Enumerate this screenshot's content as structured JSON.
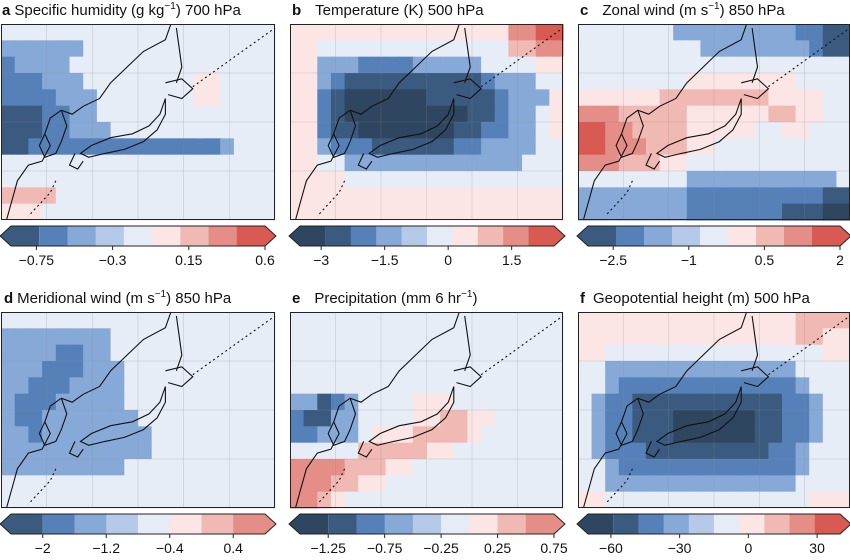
{
  "chart_data": [
    {
      "type": "heatmap",
      "letter": "a",
      "title_pre": "Specific humidity (g kg",
      "title_sup": "−1",
      "title_post": ") 700 hPa",
      "colorbar_ticks": [
        "−0.75",
        "−0.3",
        "0.15",
        "0.6"
      ],
      "colorbar_range": [
        -0.9,
        0.6
      ],
      "colorbar_levels": [
        "#3b5a80",
        "#5680b8",
        "#87a9d8",
        "#b5c9e8",
        "#e5ecf6",
        "#fbe6e5",
        "#f1b9b4",
        "#e58d87",
        "#d85a53"
      ],
      "grid": [
        "eeeeeeeeeeeeeeeeeeee",
        "ddddddeeeeeeeeeeeeee",
        "cddddeeeeeeeeeeeeeee",
        "cccdddeeeeeeeeffeeee",
        "ccccdddeeeeeeeffeeee",
        "bbbccddeeeeeeeeeeeee",
        "bbbccdddeeeeeeeeeeee",
        "bbccccccccccccccdeee",
        "eeeeeeeeeeeeeeeeeeee",
        "eeeeeeeeeeeeeeeeeeee",
        "ggggeeeeeeeeeeeeeeee",
        "fffeeeeeeeeeeeeeeeee"
      ]
    },
    {
      "type": "heatmap",
      "letter": "b",
      "title_pre": "Temperature (K) 500 hPa",
      "title_sup": "",
      "title_post": "",
      "colorbar_ticks": [
        "−3",
        "−1.5",
        "0",
        "1.5"
      ],
      "colorbar_range": [
        -3.5,
        2.5
      ],
      "colorbar_levels": [
        "#2f4660",
        "#3b5a80",
        "#5680b8",
        "#87a9d8",
        "#b5c9e8",
        "#e5ecf6",
        "#fbe6e5",
        "#f1b9b4",
        "#e58d87",
        "#d85a53"
      ],
      "grid": [
        "ffffffffffffffffhhii",
        "ffeeeeeeeeeeeeeegghh",
        "ffdddccccdddddeeeeff",
        "ffdcbbbbbbbbbbcdddee",
        "ffcbaaaaaabbbbbcdddf",
        "ffcbaaaaaaaaabbcddef",
        "ffcbbaaaaaaabbccddef",
        "ffdcccbbbbbbccddddee",
        "ffeedddddddddddddeee",
        "ffffeeeeeeeeeeeeeeee",
        "ffffffffffffffffffff",
        "ffffffffffffffffffff"
      ]
    },
    {
      "type": "heatmap",
      "letter": "c",
      "title_pre": "Zonal wind (m s",
      "title_sup": "−1",
      "title_post": ") 850 hPa",
      "colorbar_ticks": [
        "−2.5",
        "−1",
        "0.5",
        "2"
      ],
      "colorbar_range": [
        -3,
        2
      ],
      "colorbar_levels": [
        "#3b5a80",
        "#5680b8",
        "#87a9d8",
        "#b5c9e8",
        "#e5ecf6",
        "#fbe6e5",
        "#f1b9b4",
        "#e58d87",
        "#d85a53"
      ],
      "grid": [
        "eeeeeeedddddddddccbb",
        "eeeeeeeeeddddddddcbb",
        "eeeeeeeeeeeeeeeeeeee",
        "eeeeeeeeffffffffeeee",
        "ffffffggggggggffffee",
        "hhhgggggffffffggffee",
        "iihhggggfffffeeffeee",
        "iihhhgggffeeeeeeeeee",
        "hhhgggffeeeeeeeeeeee",
        "eeeeeeeeddddddddddde",
        "ddddddddccccccccccbb",
        "ddddddddcccccccbbbaa"
      ]
    },
    {
      "type": "heatmap",
      "letter": "d",
      "title_pre": "Meridional wind (m s",
      "title_sup": "−1",
      "title_post": ") 850 hPa",
      "colorbar_ticks": [
        "−2",
        "−1.2",
        "−0.4",
        "0.4"
      ],
      "colorbar_range": [
        -2.4,
        0.8
      ],
      "colorbar_levels": [
        "#3b5a80",
        "#5680b8",
        "#87a9d8",
        "#b5c9e8",
        "#e5ecf6",
        "#fbe6e5",
        "#f1b9b4",
        "#e58d87"
      ],
      "grid": [
        "eeeeeeeeeeeeeeeeeeee",
        "ddddddddeeeeeeeeeeee",
        "ddddccddeeeeeeeeeeee",
        "dddcccdddeeeeeeeeeee",
        "ddcccddddeeeeeeeeeee",
        "dcccdddddeeeeeeeeeee",
        "dccdddddddeeeeeeeeee",
        "ddcddddddddeeeeeeeee",
        "dddddddddddeeeeeeeee",
        "dddddddddeeeeeeeeeee",
        "eeeeeeeeeeeeeeeeeeee",
        "eeeeeeeeeeeeeeeeeeee"
      ]
    },
    {
      "type": "heatmap",
      "letter": "e",
      "title_pre": "Precipitation (mm 6 hr",
      "title_sup": "−1",
      "title_post": ")",
      "colorbar_ticks": [
        "−1.25",
        "−0.75",
        "−0.25",
        "0.25",
        "0.75"
      ],
      "colorbar_range": [
        -1.5,
        0.75
      ],
      "colorbar_levels": [
        "#2f4660",
        "#3b5a80",
        "#5680b8",
        "#87a9d8",
        "#b5c9e8",
        "#e5ecf6",
        "#fbe6e5",
        "#f1b9b4",
        "#e58d87"
      ],
      "grid": [
        "eeeeeeeeeeeeeeeeeeee",
        "eeeeeeeeeeeeeeeeeeee",
        "eeeeeeeeeeeeeeeeeeee",
        "eeeeeeeeeeeeeeeeeeee",
        "eeeeeeeeeeeeeeeeeeee",
        "ddbcdeeeefffeeeeeeee",
        "cbbddeeeeffggffeeeee",
        "ccdddefffggggfeeeeee",
        "eeeeegggggffeeeeeeee",
        "hhhhgggffeeeeeeeeeee",
        "hhhggffeeeeeeeeeeeee",
        "hhgfeeeeeeeeeeeeeeee"
      ]
    },
    {
      "type": "heatmap",
      "letter": "f",
      "title_pre": "Geopotential height (m) 500 hPa",
      "title_sup": "",
      "title_post": "",
      "colorbar_ticks": [
        "−60",
        "−30",
        "0",
        "30"
      ],
      "colorbar_range": [
        -70,
        40
      ],
      "colorbar_levels": [
        "#2f4660",
        "#3b5a80",
        "#5680b8",
        "#87a9d8",
        "#b5c9e8",
        "#e5ecf6",
        "#fbe6e5",
        "#f1b9b4",
        "#e58d87",
        "#d85a53"
      ],
      "grid": [
        "ffffffffffffffffgggg",
        "ffffffffffffffffggff",
        "ffeeeeeeeeeeeeeeeeff",
        "eeddddddddddddddeeee",
        "eedcccccccccccccdeee",
        "edccbbbbbbbbbbbccdee",
        "edccbbbaaaaaabbccdee",
        "edccbbbaaaaaabbccdee",
        "edcccbbbbbbbbbccdeee",
        "eedcccccccccccccdeee",
        "eeddddddddddddddeeee",
        "ffeeeeeeeeeeeeeeefff"
      ]
    }
  ]
}
